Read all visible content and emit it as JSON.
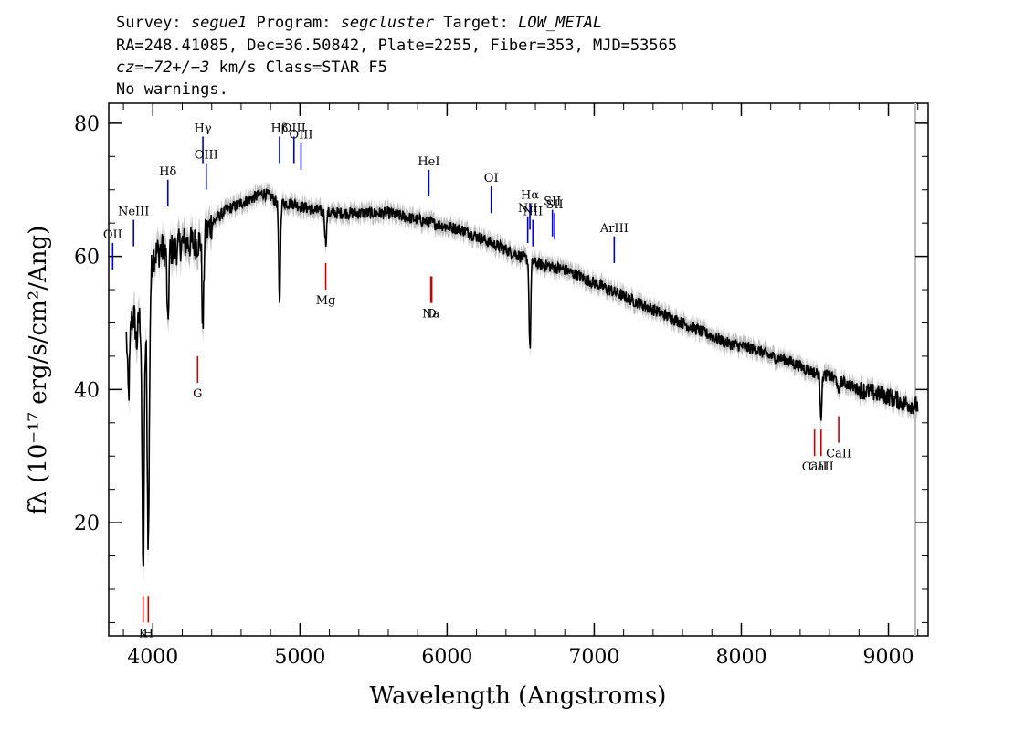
{
  "header": {
    "line1_a": "Survey: ",
    "line1_b": "segue1",
    "line1_c": " Program: ",
    "line1_d": "segcluster",
    "line1_e": " Target: ",
    "line1_f": "LOW_METAL",
    "line2": "RA=248.41085, Dec=36.50842, Plate=2255, Fiber=353, MJD=53565",
    "line3_a": "cz=",
    "line3_b": "−72+/−3",
    "line3_c": " km/s Class=STAR F5",
    "line4": "No warnings."
  },
  "chart_data": {
    "type": "line",
    "xlabel": "Wavelength (Angstroms)",
    "ylabel": "fλ (10⁻¹⁷ erg/s/cm²/Ang)",
    "xlim": [
      3700,
      9270
    ],
    "ylim": [
      3,
      83
    ],
    "xticks": [
      "4000",
      "5000",
      "6000",
      "7000",
      "8000",
      "9000"
    ],
    "yticks": [
      "20",
      "40",
      "60",
      "80"
    ],
    "colors": {
      "flux": "#000000",
      "error_band": "#bdbdbd",
      "emission": "#0000cc",
      "absorption": "#cc0000"
    },
    "continuum": {
      "x": [
        3820,
        3870,
        3900,
        3950,
        4000,
        4050,
        4100,
        4150,
        4200,
        4250,
        4300,
        4350,
        4400,
        4450,
        4500,
        4550,
        4600,
        4650,
        4700,
        4750,
        4800,
        4850,
        4900,
        4950,
        5000,
        5100,
        5200,
        5300,
        5400,
        5500,
        5600,
        5700,
        5800,
        5900,
        6000,
        6100,
        6200,
        6300,
        6400,
        6500,
        6600,
        6700,
        6800,
        6900,
        7000,
        7100,
        7200,
        7300,
        7400,
        7500,
        7600,
        7700,
        7800,
        7900,
        8000,
        8100,
        8200,
        8300,
        8400,
        8500,
        8600,
        8700,
        8800,
        8900,
        9000,
        9100,
        9200
      ],
      "y": [
        49,
        51,
        51,
        50,
        60,
        61,
        61,
        61,
        62,
        62,
        62,
        63,
        65,
        66,
        67,
        67.5,
        68,
        68.5,
        69,
        69.5,
        69,
        68,
        68,
        68,
        67.5,
        67,
        66.5,
        66.5,
        66.5,
        66.5,
        66.5,
        66,
        65.5,
        65,
        64.5,
        64,
        63,
        62,
        61,
        60,
        59,
        58.5,
        58,
        57,
        56,
        55,
        54,
        53,
        52,
        51,
        50,
        49,
        48,
        47,
        46.5,
        46,
        45,
        44.5,
        43.5,
        42.5,
        42,
        41,
        40,
        39.5,
        39,
        38,
        37.5
      ]
    },
    "absorption_features": [
      {
        "x": 3835,
        "y": 39
      },
      {
        "x": 3890,
        "y": 47
      },
      {
        "x": 3934,
        "y": 12
      },
      {
        "x": 3969,
        "y": 17
      },
      {
        "x": 4102,
        "y": 49
      },
      {
        "x": 4340,
        "y": 49
      },
      {
        "x": 4861,
        "y": 52.5
      },
      {
        "x": 5175,
        "y": 62
      },
      {
        "x": 6563,
        "y": 46
      },
      {
        "x": 8542,
        "y": 36
      },
      {
        "x": 8662,
        "y": 39
      }
    ],
    "emission_lines": [
      {
        "label": "OII",
        "x": 3727,
        "y0": 58,
        "y1": 62
      },
      {
        "label": "NeIII",
        "x": 3869,
        "y0": 61.5,
        "y1": 65.5
      },
      {
        "label": "Hδ",
        "x": 4102,
        "y0": 67.5,
        "y1": 71.5
      },
      {
        "label": "Hγ",
        "x": 4340,
        "y0": 74,
        "y1": 78
      },
      {
        "label": "OIII",
        "x": 4363,
        "y0": 70,
        "y1": 74
      },
      {
        "label": "Hβ",
        "x": 4861,
        "y0": 74,
        "y1": 78
      },
      {
        "label": "OIII",
        "x": 4959,
        "y0": 74,
        "y1": 78
      },
      {
        "label": "OIII",
        "x": 5007,
        "y0": 73,
        "y1": 77
      },
      {
        "label": "HeI",
        "x": 5876,
        "y0": 69,
        "y1": 73
      },
      {
        "label": "OI",
        "x": 6300,
        "y0": 66.5,
        "y1": 70.5
      },
      {
        "label": "NII",
        "x": 6548,
        "y0": 62,
        "y1": 66
      },
      {
        "label": "Hα",
        "x": 6563,
        "y0": 64,
        "y1": 68
      },
      {
        "label": "NII",
        "x": 6583,
        "y0": 61.5,
        "y1": 65.5
      },
      {
        "label": "SII",
        "x": 6716,
        "y0": 63,
        "y1": 67
      },
      {
        "label": "SII",
        "x": 6731,
        "y0": 62.5,
        "y1": 66.5
      },
      {
        "label": "ArIII",
        "x": 7136,
        "y0": 59,
        "y1": 63
      }
    ],
    "absorption_lines": [
      {
        "label": "K",
        "x": 3934,
        "y0": 5,
        "y1": 9
      },
      {
        "label": "H",
        "x": 3969,
        "y0": 5,
        "y1": 9
      },
      {
        "label": "G",
        "x": 4304,
        "y0": 41,
        "y1": 45
      },
      {
        "label": "Mg",
        "x": 5175,
        "y0": 55,
        "y1": 59
      },
      {
        "label": "Na",
        "x": 5890,
        "y0": 53,
        "y1": 57
      },
      {
        "label": "D",
        "x": 5896,
        "y0": 53,
        "y1": 57
      },
      {
        "label": "CaII",
        "x": 8498,
        "y0": 30,
        "y1": 34
      },
      {
        "label": "CaII",
        "x": 8542,
        "y0": 30,
        "y1": 34
      },
      {
        "label": "CaII",
        "x": 8662,
        "y0": 32,
        "y1": 36
      }
    ]
  }
}
